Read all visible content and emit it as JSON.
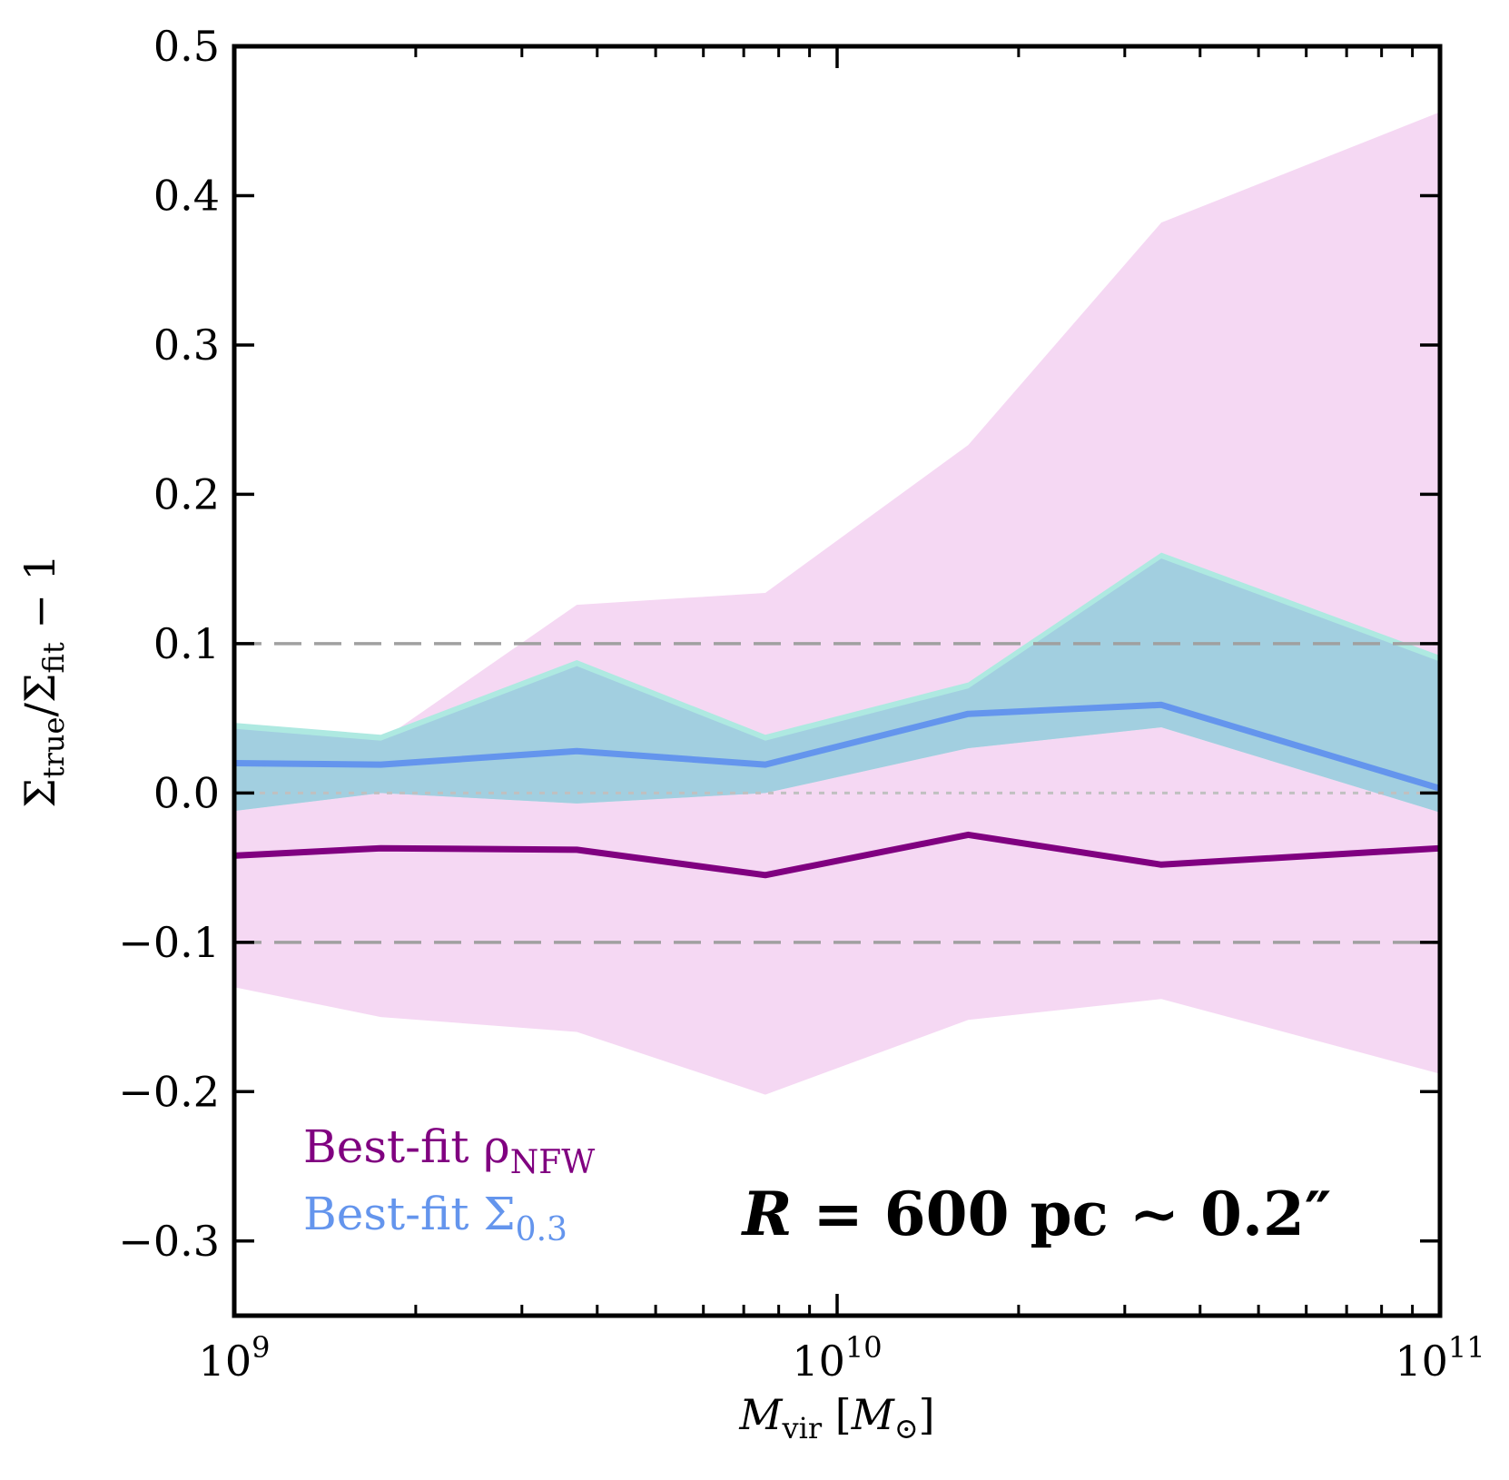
{
  "chart_data": {
    "type": "line",
    "xscale": "log",
    "xlim": [
      1000000000,
      100000000000
    ],
    "ylim": [
      -0.35,
      0.5
    ],
    "x_ticks": [
      {
        "value": 1000000000,
        "label": "10",
        "exp": "9"
      },
      {
        "value": 10000000000,
        "label": "10",
        "exp": "10"
      },
      {
        "value": 100000000000,
        "label": "10",
        "exp": "11"
      }
    ],
    "y_ticks": [
      {
        "value": 0.5,
        "label": "0.5"
      },
      {
        "value": 0.4,
        "label": "0.4"
      },
      {
        "value": 0.3,
        "label": "0.3"
      },
      {
        "value": 0.2,
        "label": "0.2"
      },
      {
        "value": 0.1,
        "label": "0.1"
      },
      {
        "value": 0.0,
        "label": "0.0"
      },
      {
        "value": -0.1,
        "label": "−0.1"
      },
      {
        "value": -0.2,
        "label": "−0.2"
      },
      {
        "value": -0.3,
        "label": "−0.3"
      }
    ],
    "xlabel": {
      "main": "M",
      "sub": "vir",
      "unit_open": " [",
      "unit_main": "M",
      "unit_sub": "⊙",
      "unit_close": "]"
    },
    "ylabel": {
      "s1": "Σ",
      "sub1": "true",
      "mid": "/Σ",
      "sub2": "fit",
      "tail": " − 1"
    },
    "x": [
      1000000000,
      1750000000,
      3700000000,
      7600000000,
      16500000000,
      34500000000,
      100000000000
    ],
    "series": [
      {
        "name_main": "Best-fit ρ",
        "name_sub": "NFW",
        "color": "#800080",
        "band_color": "#f5d8f3",
        "median": [
          -0.042,
          -0.037,
          -0.038,
          -0.055,
          -0.028,
          -0.048,
          -0.037
        ],
        "lower": [
          -0.13,
          -0.15,
          -0.16,
          -0.202,
          -0.152,
          -0.138,
          -0.188
        ],
        "upper": [
          0.045,
          0.035,
          0.126,
          0.134,
          0.233,
          0.382,
          0.456
        ]
      },
      {
        "name_main": "Best-fit Σ",
        "name_sub": "0.3",
        "color": "#6495ed",
        "band_color": "#a2cfe0",
        "overlap_edge_color": "#aee9e1",
        "median": [
          0.02,
          0.019,
          0.028,
          0.019,
          0.053,
          0.059,
          0.003
        ],
        "lower": [
          -0.012,
          0.0,
          -0.007,
          0.0,
          0.03,
          0.044,
          -0.013
        ],
        "upper": [
          0.047,
          0.039,
          0.089,
          0.039,
          0.074,
          0.161,
          0.092
        ]
      }
    ],
    "reference_lines": [
      {
        "y": 0.1,
        "style": "dashed",
        "color": "#a0a0a0"
      },
      {
        "y": -0.1,
        "style": "dashed",
        "color": "#a0a0a0"
      },
      {
        "y": 0.0,
        "style": "dotted",
        "color": "#c0c0c0"
      }
    ],
    "annotation": {
      "r": "R",
      "rest": " = 600 pc ∼ 0.2″"
    },
    "legend_placement": "lower-left",
    "grid": false
  }
}
